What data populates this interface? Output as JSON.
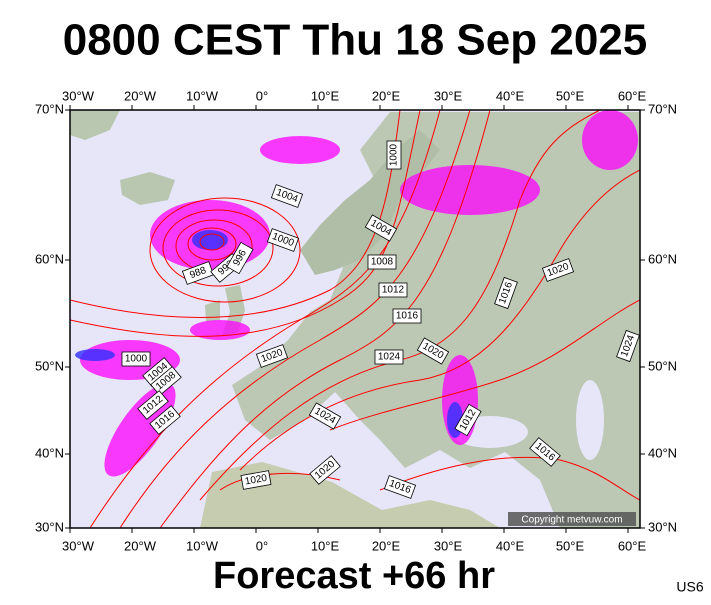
{
  "header": {
    "title": "0800 CEST Thu 18 Sep 2025"
  },
  "map": {
    "lon_labels": [
      "30°W",
      "20°W",
      "10°W",
      "0°",
      "10°E",
      "20°E",
      "30°E",
      "40°E",
      "50°E",
      "60°E"
    ],
    "lat_labels": [
      "70°N",
      "60°N",
      "50°N",
      "40°N",
      "30°N"
    ],
    "isobar_labels": [
      "1004",
      "1000",
      "988",
      "992",
      "996",
      "1000",
      "1004",
      "1008",
      "1012",
      "1016",
      "1020",
      "1024",
      "1020",
      "1016",
      "1020",
      "1024",
      "1000",
      "1004",
      "1008",
      "1012",
      "1016",
      "1024",
      "1012",
      "1016",
      "1020",
      "1020",
      "1016"
    ],
    "copyright": "Copyright metvuw.com"
  },
  "footer": {
    "forecast": "Forecast +66 hr",
    "code": "US6"
  }
}
